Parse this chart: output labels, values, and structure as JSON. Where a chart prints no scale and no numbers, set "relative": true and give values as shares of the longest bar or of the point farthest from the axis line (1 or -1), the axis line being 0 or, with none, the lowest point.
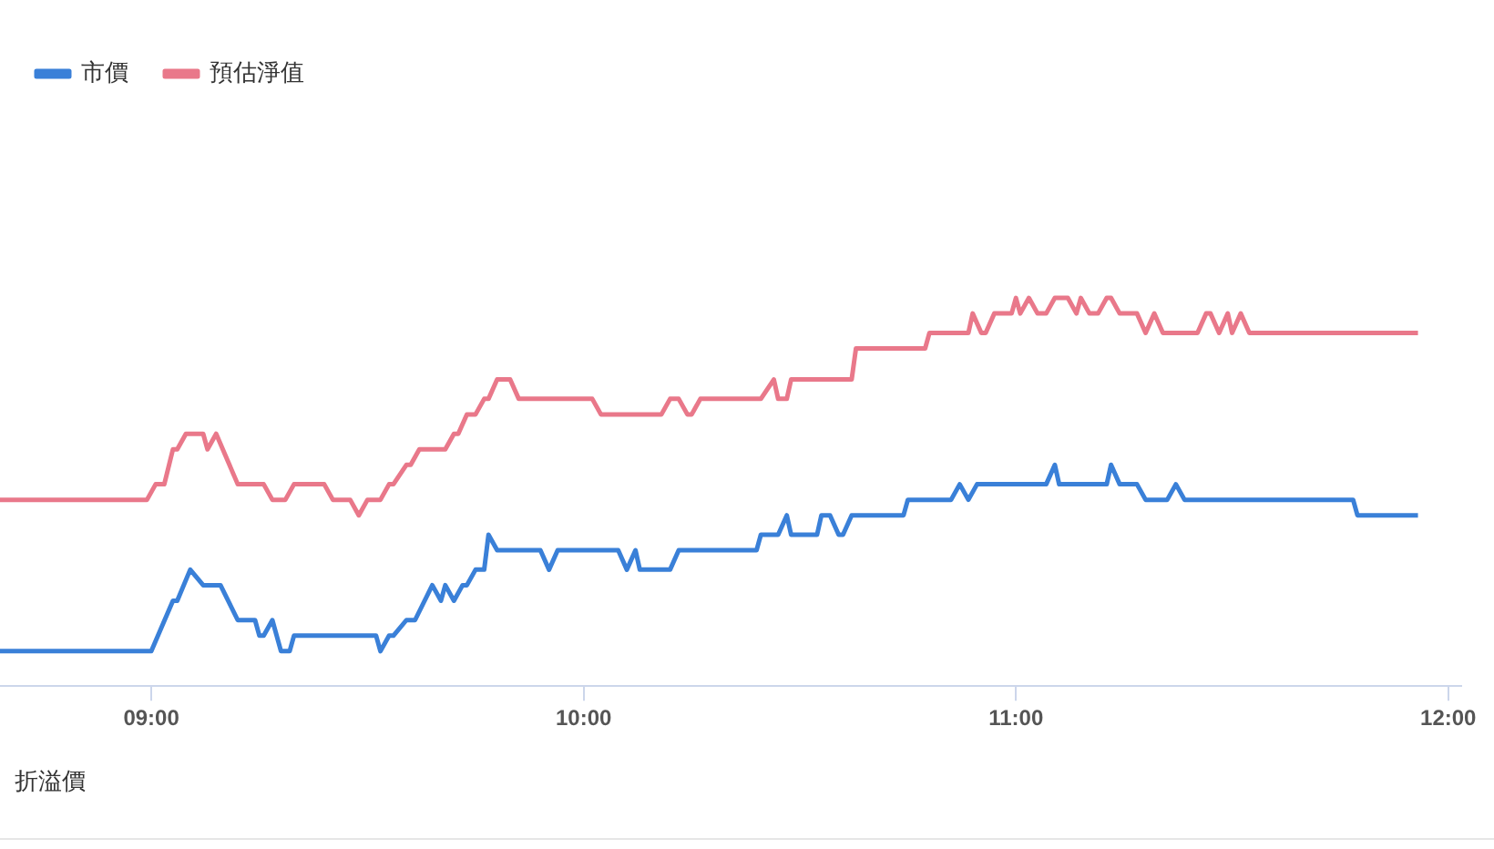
{
  "chart_data": {
    "type": "line",
    "relative": true,
    "legend": "top left",
    "tick_labels": "x",
    "marker": "none",
    "line_style": "solid",
    "xlim": [
      8.65,
      12.03
    ],
    "xticks": [
      {
        "value": 9,
        "label": "09:00"
      },
      {
        "value": 10,
        "label": "10:00"
      },
      {
        "value": 11,
        "label": "11:00"
      },
      {
        "value": 12,
        "label": "12:00"
      }
    ],
    "annotations": [
      "折溢價"
    ],
    "series": [
      {
        "name": "市價",
        "color": "#3a80d8",
        "x": [
          8.65,
          9.0,
          9.05,
          9.06,
          9.09,
          9.12,
          9.16,
          9.2,
          9.24,
          9.25,
          9.26,
          9.28,
          9.3,
          9.32,
          9.33,
          9.52,
          9.53,
          9.55,
          9.56,
          9.59,
          9.61,
          9.65,
          9.67,
          9.68,
          9.7,
          9.72,
          9.73,
          9.75,
          9.77,
          9.78,
          9.8,
          9.9,
          9.92,
          9.94,
          10.08,
          10.1,
          10.12,
          10.13,
          10.2,
          10.22,
          10.4,
          10.41,
          10.45,
          10.47,
          10.48,
          10.54,
          10.55,
          10.57,
          10.59,
          10.6,
          10.62,
          10.74,
          10.75,
          10.85,
          10.87,
          10.89,
          10.91,
          11.07,
          11.09,
          11.1,
          11.21,
          11.22,
          11.24,
          11.28,
          11.3,
          11.35,
          11.37,
          11.39,
          11.78,
          11.79,
          11.93
        ],
        "values": [
          0.09,
          0.09,
          0.22,
          0.22,
          0.3,
          0.26,
          0.26,
          0.17,
          0.17,
          0.13,
          0.13,
          0.17,
          0.09,
          0.09,
          0.13,
          0.13,
          0.09,
          0.13,
          0.13,
          0.17,
          0.17,
          0.26,
          0.22,
          0.26,
          0.22,
          0.26,
          0.26,
          0.3,
          0.3,
          0.39,
          0.35,
          0.35,
          0.3,
          0.35,
          0.35,
          0.3,
          0.35,
          0.3,
          0.3,
          0.35,
          0.35,
          0.39,
          0.39,
          0.44,
          0.39,
          0.39,
          0.44,
          0.44,
          0.39,
          0.39,
          0.44,
          0.44,
          0.48,
          0.48,
          0.52,
          0.48,
          0.52,
          0.52,
          0.57,
          0.52,
          0.52,
          0.57,
          0.52,
          0.52,
          0.48,
          0.48,
          0.52,
          0.48,
          0.48,
          0.44,
          0.44
        ]
      },
      {
        "name": "預估淨值",
        "color": "#e9788a",
        "x": [
          8.65,
          8.99,
          9.01,
          9.03,
          9.05,
          9.06,
          9.08,
          9.12,
          9.13,
          9.15,
          9.2,
          9.26,
          9.28,
          9.31,
          9.33,
          9.4,
          9.42,
          9.46,
          9.48,
          9.5,
          9.53,
          9.55,
          9.56,
          9.59,
          9.6,
          9.62,
          9.68,
          9.7,
          9.71,
          9.73,
          9.75,
          9.77,
          9.78,
          9.8,
          9.83,
          9.85,
          10.02,
          10.04,
          10.18,
          10.2,
          10.22,
          10.24,
          10.25,
          10.27,
          10.41,
          10.44,
          10.45,
          10.47,
          10.48,
          10.62,
          10.63,
          10.79,
          10.8,
          10.89,
          10.9,
          10.92,
          10.93,
          10.95,
          10.99,
          11.0,
          11.01,
          11.03,
          11.05,
          11.07,
          11.09,
          11.12,
          11.14,
          11.15,
          11.17,
          11.19,
          11.21,
          11.22,
          11.24,
          11.28,
          11.3,
          11.32,
          11.34,
          11.42,
          11.44,
          11.45,
          11.47,
          11.49,
          11.5,
          11.52,
          11.54,
          11.93
        ],
        "values": [
          0.48,
          0.48,
          0.52,
          0.52,
          0.61,
          0.61,
          0.65,
          0.65,
          0.61,
          0.65,
          0.52,
          0.52,
          0.48,
          0.48,
          0.52,
          0.52,
          0.48,
          0.48,
          0.44,
          0.48,
          0.48,
          0.52,
          0.52,
          0.57,
          0.57,
          0.61,
          0.61,
          0.65,
          0.65,
          0.7,
          0.7,
          0.74,
          0.74,
          0.79,
          0.79,
          0.74,
          0.74,
          0.7,
          0.7,
          0.74,
          0.74,
          0.7,
          0.7,
          0.74,
          0.74,
          0.79,
          0.74,
          0.74,
          0.79,
          0.79,
          0.87,
          0.87,
          0.91,
          0.91,
          0.96,
          0.91,
          0.91,
          0.96,
          0.96,
          1.0,
          0.96,
          1.0,
          0.96,
          0.96,
          1.0,
          1.0,
          0.96,
          1.0,
          0.96,
          0.96,
          1.0,
          1.0,
          0.96,
          0.96,
          0.91,
          0.96,
          0.91,
          0.91,
          0.96,
          0.96,
          0.91,
          0.96,
          0.91,
          0.96,
          0.91,
          0.91
        ]
      }
    ]
  }
}
